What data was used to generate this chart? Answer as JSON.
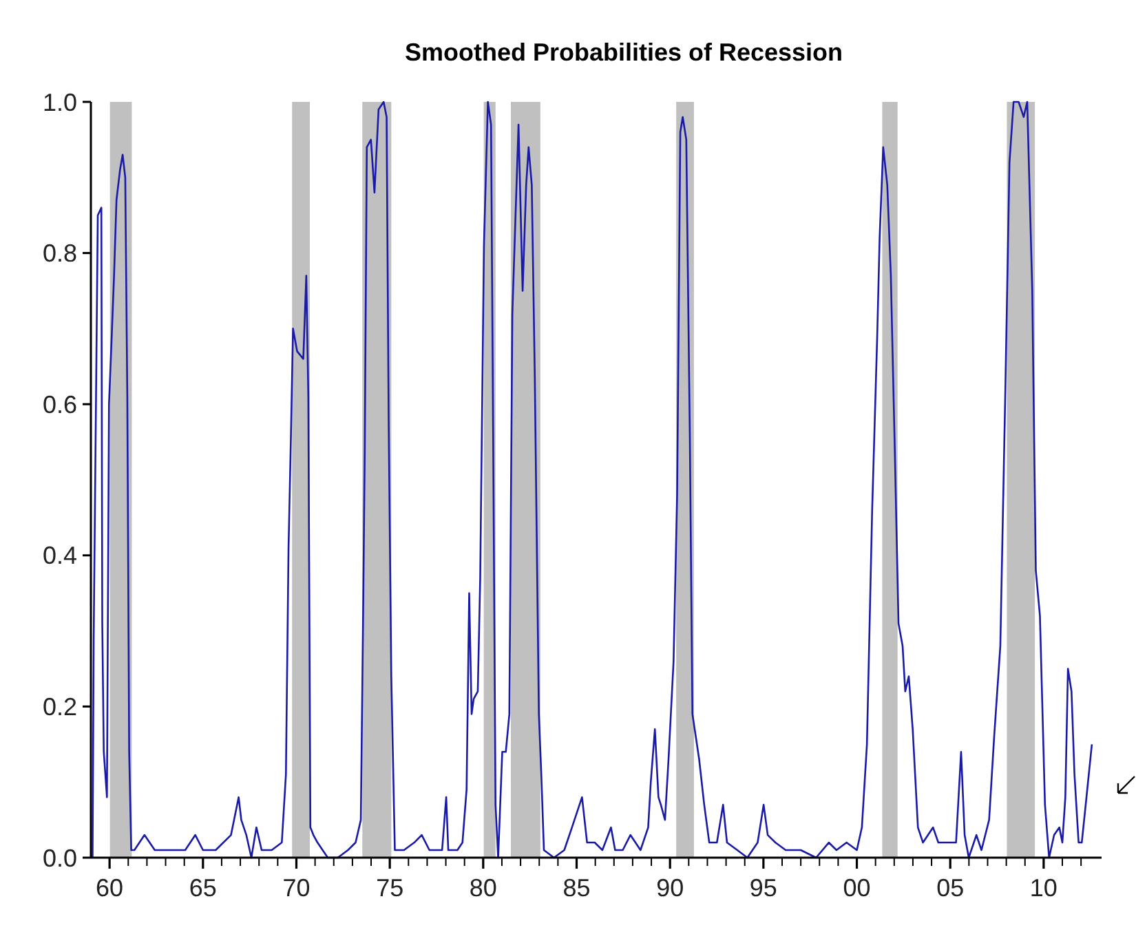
{
  "chart_data": {
    "type": "line",
    "title": "Smoothed Probabilities of Recession",
    "xlim": [
      1959,
      2013.1
    ],
    "ylim": [
      0,
      1
    ],
    "xticks": [
      {
        "value": 1960,
        "label": "60"
      },
      {
        "value": 1961,
        "label": null
      },
      {
        "value": 1962,
        "label": null
      },
      {
        "value": 1963,
        "label": null
      },
      {
        "value": 1964,
        "label": null
      },
      {
        "value": 1965,
        "label": "65"
      },
      {
        "value": 1966,
        "label": null
      },
      {
        "value": 1967,
        "label": null
      },
      {
        "value": 1968,
        "label": null
      },
      {
        "value": 1969,
        "label": null
      },
      {
        "value": 1970,
        "label": "70"
      },
      {
        "value": 1971,
        "label": null
      },
      {
        "value": 1972,
        "label": null
      },
      {
        "value": 1973,
        "label": null
      },
      {
        "value": 1974,
        "label": null
      },
      {
        "value": 1975,
        "label": "75"
      },
      {
        "value": 1976,
        "label": null
      },
      {
        "value": 1977,
        "label": null
      },
      {
        "value": 1978,
        "label": null
      },
      {
        "value": 1979,
        "label": null
      },
      {
        "value": 1980,
        "label": "80"
      },
      {
        "value": 1981,
        "label": null
      },
      {
        "value": 1982,
        "label": null
      },
      {
        "value": 1983,
        "label": null
      },
      {
        "value": 1984,
        "label": null
      },
      {
        "value": 1985,
        "label": "85"
      },
      {
        "value": 1986,
        "label": null
      },
      {
        "value": 1987,
        "label": null
      },
      {
        "value": 1988,
        "label": null
      },
      {
        "value": 1989,
        "label": null
      },
      {
        "value": 1990,
        "label": "90"
      },
      {
        "value": 1991,
        "label": null
      },
      {
        "value": 1992,
        "label": null
      },
      {
        "value": 1993,
        "label": null
      },
      {
        "value": 1994,
        "label": null
      },
      {
        "value": 1995,
        "label": "95"
      },
      {
        "value": 1996,
        "label": null
      },
      {
        "value": 1997,
        "label": null
      },
      {
        "value": 1998,
        "label": null
      },
      {
        "value": 1999,
        "label": null
      },
      {
        "value": 2000,
        "label": "00"
      },
      {
        "value": 2001,
        "label": null
      },
      {
        "value": 2002,
        "label": null
      },
      {
        "value": 2003,
        "label": null
      },
      {
        "value": 2004,
        "label": null
      },
      {
        "value": 2005,
        "label": "05"
      },
      {
        "value": 2006,
        "label": null
      },
      {
        "value": 2007,
        "label": null
      },
      {
        "value": 2008,
        "label": null
      },
      {
        "value": 2009,
        "label": null
      },
      {
        "value": 2010,
        "label": "10"
      },
      {
        "value": 2011,
        "label": null
      },
      {
        "value": 2012,
        "label": null
      }
    ],
    "yticks": [
      {
        "value": 0,
        "label": "0.0"
      },
      0.2,
      0.4,
      0.6,
      0.8,
      {
        "value": 1,
        "label": "1.0"
      }
    ],
    "grid": false,
    "bands": [
      {
        "axis": "x",
        "from": 1960.02,
        "to": 1961.19,
        "color": "#c0c0c0"
      },
      {
        "axis": "x",
        "from": 1969.77,
        "to": 1970.72,
        "color": "#c0c0c0"
      },
      {
        "axis": "x",
        "from": 1973.53,
        "to": 1975.08,
        "color": "#c0c0c0"
      },
      {
        "axis": "x",
        "from": 1980.03,
        "to": 1980.66,
        "color": "#c0c0c0"
      },
      {
        "axis": "x",
        "from": 1981.48,
        "to": 1983.06,
        "color": "#c0c0c0"
      },
      {
        "axis": "x",
        "from": 1990.33,
        "to": 1991.28,
        "color": "#c0c0c0"
      },
      {
        "axis": "x",
        "from": 2001.36,
        "to": 2002.18,
        "color": "#c0c0c0"
      },
      {
        "axis": "x",
        "from": 2008.03,
        "to": 2009.53,
        "color": "#c0c0c0"
      }
    ],
    "series": [
      {
        "color": "#1a1aa8",
        "line_style": "solid",
        "marker": "none",
        "x": [
          1959.09,
          1959.15,
          1959.37,
          1959.56,
          1959.61,
          1959.69,
          1959.86,
          1959.97,
          1960.1,
          1960.24,
          1960.37,
          1960.56,
          1960.7,
          1960.84,
          1960.95,
          1961.05,
          1961.16,
          1961.33,
          1961.87,
          1962.42,
          1962.96,
          1963.51,
          1964.05,
          1964.59,
          1965.0,
          1965.68,
          1966.5,
          1966.91,
          1967.05,
          1967.32,
          1967.59,
          1967.86,
          1968.14,
          1968.68,
          1969.22,
          1969.44,
          1969.58,
          1969.71,
          1969.82,
          1970.04,
          1970.37,
          1970.53,
          1970.64,
          1970.75,
          1970.91,
          1971.13,
          1971.68,
          1972.22,
          1972.76,
          1973.17,
          1973.45,
          1973.58,
          1973.66,
          1973.77,
          1973.99,
          1974.18,
          1974.4,
          1974.67,
          1974.83,
          1974.94,
          1975.08,
          1975.27,
          1975.76,
          1976.31,
          1976.71,
          1977.12,
          1977.26,
          1977.8,
          1978.02,
          1978.13,
          1978.62,
          1978.89,
          1979.11,
          1979.25,
          1979.38,
          1979.49,
          1979.71,
          1979.84,
          1980.04,
          1980.25,
          1980.42,
          1980.53,
          1980.66,
          1980.8,
          1981.02,
          1981.21,
          1981.4,
          1981.56,
          1981.89,
          1982.11,
          1982.3,
          1982.43,
          1982.6,
          1982.76,
          1982.98,
          1983.11,
          1983.25,
          1983.79,
          1984.34,
          1984.75,
          1985.29,
          1985.56,
          1985.97,
          1986.38,
          1986.84,
          1987.06,
          1987.47,
          1987.88,
          1988.42,
          1988.83,
          1988.97,
          1989.19,
          1989.38,
          1989.51,
          1989.73,
          1989.92,
          1990.19,
          1990.38,
          1990.55,
          1990.68,
          1990.87,
          1991.06,
          1991.2,
          1991.56,
          1991.83,
          1992.1,
          1992.51,
          1992.84,
          1993.05,
          1993.6,
          1994.14,
          1994.69,
          1995.01,
          1995.23,
          1995.64,
          1996.19,
          1997.0,
          1997.82,
          1998.5,
          1998.91,
          1999.45,
          2000.0,
          2000.27,
          2000.54,
          2000.82,
          2001.09,
          2001.22,
          2001.41,
          2001.63,
          2001.82,
          2002.04,
          2002.23,
          2002.45,
          2002.59,
          2002.78,
          2002.99,
          2003.27,
          2003.54,
          2004.08,
          2004.36,
          2004.9,
          2005.31,
          2005.58,
          2005.77,
          2005.99,
          2006.4,
          2006.67,
          2007.08,
          2007.35,
          2007.68,
          2007.95,
          2008.17,
          2008.39,
          2008.66,
          2008.93,
          2009.12,
          2009.39,
          2009.58,
          2009.8,
          2010.07,
          2010.29,
          2010.56,
          2010.84,
          2011.0,
          2011.16,
          2011.3,
          2011.49,
          2011.65,
          2011.87,
          2012.04,
          2012.25,
          2012.58
        ],
        "values": [
          0.0,
          0.29,
          0.85,
          0.86,
          0.31,
          0.14,
          0.08,
          0.6,
          0.68,
          0.77,
          0.87,
          0.91,
          0.93,
          0.9,
          0.61,
          0.14,
          0.01,
          0.01,
          0.03,
          0.01,
          0.01,
          0.01,
          0.01,
          0.03,
          0.01,
          0.01,
          0.03,
          0.08,
          0.05,
          0.03,
          0.0,
          0.04,
          0.01,
          0.01,
          0.02,
          0.11,
          0.41,
          0.56,
          0.7,
          0.67,
          0.66,
          0.77,
          0.61,
          0.04,
          0.03,
          0.02,
          0.0,
          0.0,
          0.01,
          0.02,
          0.05,
          0.34,
          0.54,
          0.94,
          0.95,
          0.88,
          0.99,
          1.0,
          0.98,
          0.58,
          0.24,
          0.01,
          0.01,
          0.02,
          0.03,
          0.01,
          0.01,
          0.01,
          0.08,
          0.01,
          0.01,
          0.02,
          0.09,
          0.35,
          0.19,
          0.21,
          0.22,
          0.37,
          0.81,
          1.0,
          0.97,
          0.57,
          0.07,
          0.0,
          0.14,
          0.14,
          0.19,
          0.72,
          0.97,
          0.75,
          0.89,
          0.94,
          0.89,
          0.64,
          0.19,
          0.11,
          0.01,
          0.0,
          0.01,
          0.04,
          0.08,
          0.02,
          0.02,
          0.01,
          0.04,
          0.01,
          0.01,
          0.03,
          0.01,
          0.04,
          0.1,
          0.17,
          0.08,
          0.07,
          0.05,
          0.13,
          0.26,
          0.48,
          0.96,
          0.98,
          0.95,
          0.56,
          0.19,
          0.13,
          0.07,
          0.02,
          0.02,
          0.07,
          0.02,
          0.01,
          0.0,
          0.02,
          0.07,
          0.03,
          0.02,
          0.01,
          0.01,
          0.0,
          0.02,
          0.01,
          0.02,
          0.01,
          0.04,
          0.15,
          0.46,
          0.69,
          0.82,
          0.94,
          0.89,
          0.77,
          0.53,
          0.31,
          0.28,
          0.22,
          0.24,
          0.17,
          0.04,
          0.02,
          0.04,
          0.02,
          0.02,
          0.02,
          0.14,
          0.03,
          0.0,
          0.03,
          0.01,
          0.05,
          0.16,
          0.28,
          0.62,
          0.92,
          1.0,
          1.0,
          0.98,
          1.0,
          0.75,
          0.38,
          0.32,
          0.07,
          0.0,
          0.03,
          0.04,
          0.02,
          0.08,
          0.25,
          0.22,
          0.11,
          0.02,
          0.02,
          0.07,
          0.15
        ]
      }
    ]
  }
}
